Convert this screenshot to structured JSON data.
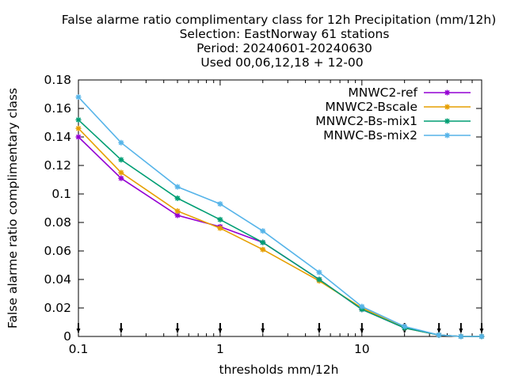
{
  "chart_data": {
    "type": "line",
    "title_lines": [
      "False alarme ratio complimentary class  for 12h Precipitation (mm/12h)",
      "Selection: EastNorway     61 stations",
      "Period: 20240601-20240630",
      "Used 00,06,12,18 + 12-00"
    ],
    "xlabel": "thresholds mm/12h",
    "ylabel": "False alarme ratio complimentary class",
    "x_scale": "log",
    "xlim": [
      0.1,
      70
    ],
    "ylim": [
      0,
      0.18
    ],
    "x_ticks": [
      0.1,
      1,
      10
    ],
    "x_tick_labels": [
      "0.1",
      "1",
      "10"
    ],
    "y_ticks": [
      0,
      0.02,
      0.04,
      0.06,
      0.08,
      0.1,
      0.12,
      0.14,
      0.16,
      0.18
    ],
    "y_tick_labels": [
      "0",
      "0.02",
      "0.04",
      "0.06",
      "0.08",
      "0.1",
      "0.12",
      "0.14",
      "0.16",
      "0.18"
    ],
    "grid": false,
    "legend_position": "top-right",
    "x": [
      0.1,
      0.2,
      0.5,
      1,
      2,
      5,
      10,
      20,
      35,
      50,
      70
    ],
    "series": [
      {
        "name": "MNWC2-ref",
        "color": "#9400d3",
        "marker": "star",
        "values": [
          0.14,
          0.111,
          0.085,
          0.077,
          0.066,
          0.04,
          0.019,
          0.006,
          0.001,
          0.0,
          0.0
        ]
      },
      {
        "name": "MNWC2-Bscale",
        "color": "#e69f00",
        "marker": "star",
        "values": [
          0.146,
          0.115,
          0.088,
          0.076,
          0.061,
          0.039,
          0.02,
          0.006,
          0.001,
          0.0,
          0.0
        ]
      },
      {
        "name": "MNWC2-Bs-mix1",
        "color": "#009e73",
        "marker": "star",
        "values": [
          0.152,
          0.124,
          0.097,
          0.082,
          0.066,
          0.04,
          0.019,
          0.006,
          0.001,
          0.0,
          0.0
        ]
      },
      {
        "name": "MNWC-Bs-mix2",
        "color": "#56b4e9",
        "marker": "star",
        "values": [
          0.168,
          0.136,
          0.105,
          0.093,
          0.074,
          0.045,
          0.021,
          0.007,
          0.001,
          0.0,
          0.0
        ]
      }
    ],
    "threshold_markers": [
      0.1,
      0.2,
      0.5,
      1,
      2,
      5,
      10,
      20,
      35,
      50,
      70
    ]
  }
}
